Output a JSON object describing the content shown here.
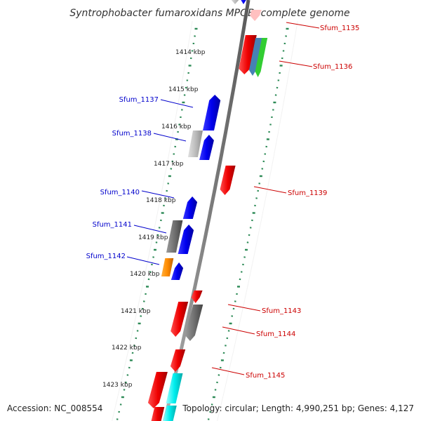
{
  "title": "Syntrophobacter fumaroxidans MPOB, complete genome",
  "accession": "Accession: NC_008554",
  "topology": "Topology: circular; Length: 4,990,251 bp; Genes: 4,127",
  "colors": {
    "forward_gene": "#0000ff",
    "reverse_gene": "#ff0000",
    "pseudogene": "#808080",
    "backbone": "#808080",
    "tick": "#2e8b57",
    "forward_label": "#0000cc",
    "reverse_label": "#cc0000"
  },
  "kbp_ticks": [
    {
      "label": "1414 kbp",
      "kbp": 1414
    },
    {
      "label": "1415 kbp",
      "kbp": 1415
    },
    {
      "label": "1416 kbp",
      "kbp": 1416
    },
    {
      "label": "1417 kbp",
      "kbp": 1417
    },
    {
      "label": "1418 kbp",
      "kbp": 1418
    },
    {
      "label": "1419 kbp",
      "kbp": 1419
    },
    {
      "label": "1420 kbp",
      "kbp": 1420
    },
    {
      "label": "1421 kbp",
      "kbp": 1421
    },
    {
      "label": "1422 kbp",
      "kbp": 1422
    },
    {
      "label": "1423 kbp",
      "kbp": 1423
    }
  ],
  "gene_labels": [
    {
      "name": "Sfum_1135",
      "strand": "reverse"
    },
    {
      "name": "Sfum_1136",
      "strand": "reverse"
    },
    {
      "name": "Sfum_1137",
      "strand": "forward"
    },
    {
      "name": "Sfum_1138",
      "strand": "forward"
    },
    {
      "name": "Sfum_1139",
      "strand": "reverse"
    },
    {
      "name": "Sfum_1140",
      "strand": "forward"
    },
    {
      "name": "Sfum_1141",
      "strand": "forward"
    },
    {
      "name": "Sfum_1142",
      "strand": "forward"
    },
    {
      "name": "Sfum_1143",
      "strand": "reverse"
    },
    {
      "name": "Sfum_1144",
      "strand": "reverse"
    },
    {
      "name": "Sfum_1145",
      "strand": "reverse"
    }
  ]
}
